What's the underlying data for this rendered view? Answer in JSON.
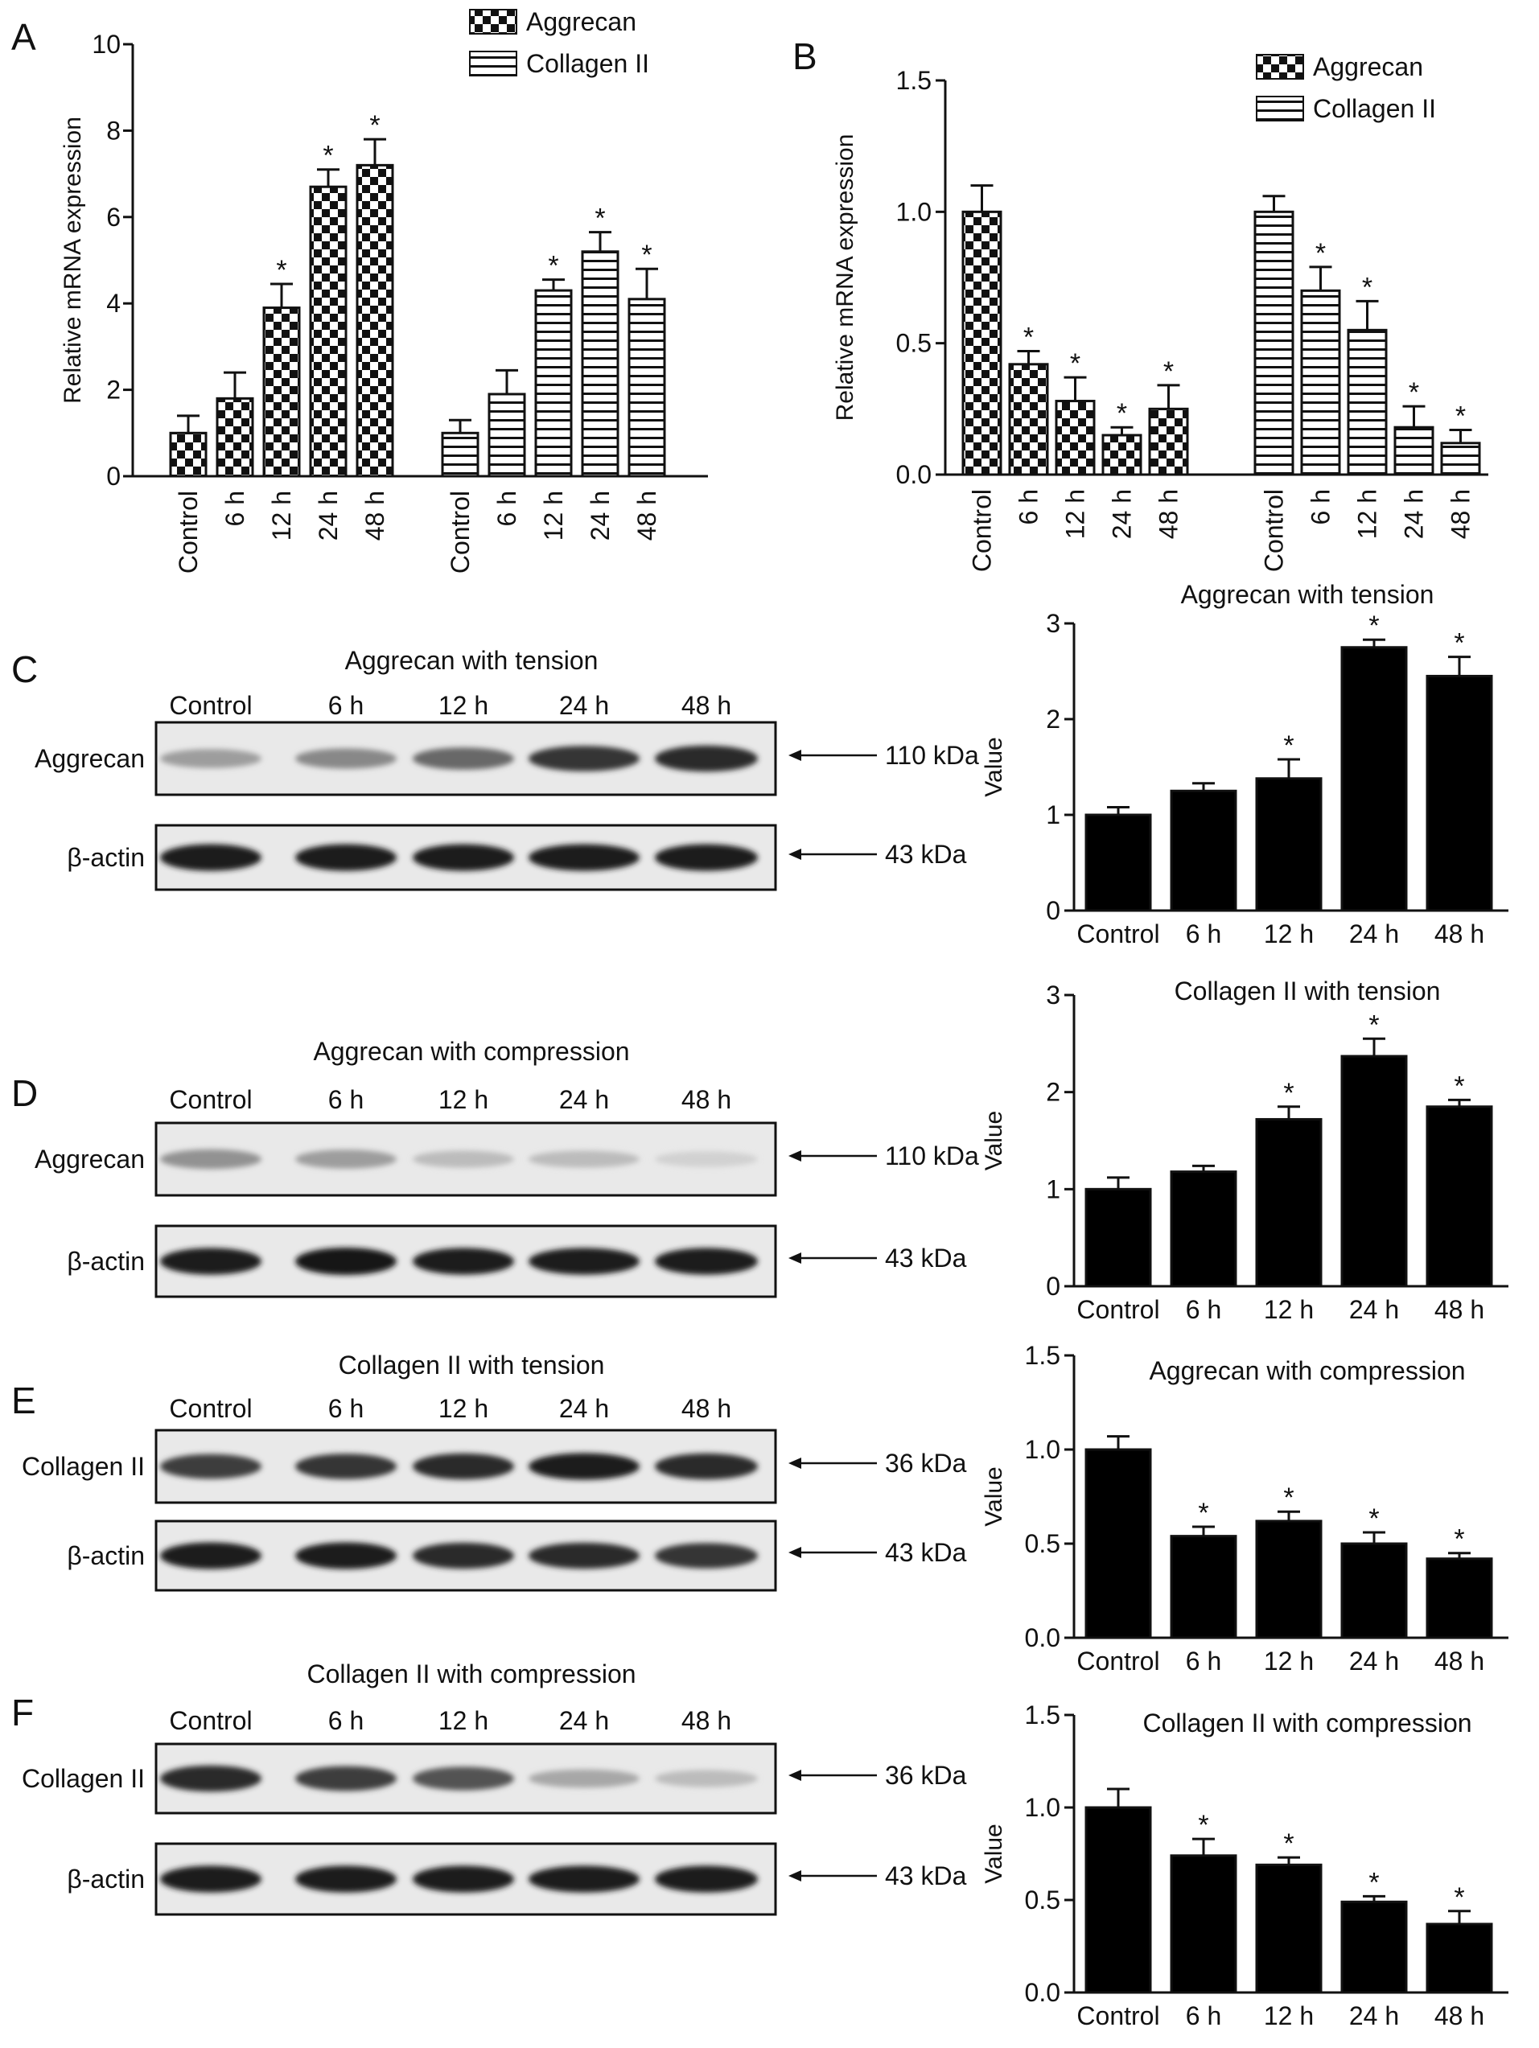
{
  "panel_letters": [
    "A",
    "B",
    "C",
    "D",
    "E",
    "F"
  ],
  "blots": [
    {
      "id": "C",
      "title": "Aggrecan with tension",
      "lanes": [
        "Control",
        "6 h",
        "12 h",
        "24 h",
        "48 h"
      ],
      "rows": [
        {
          "label": "Aggrecan",
          "kda": "110 kDa",
          "intensity": [
            0.35,
            0.45,
            0.6,
            0.85,
            0.9
          ]
        },
        {
          "label": "β-actin",
          "kda": "43 kDa",
          "intensity": [
            0.95,
            0.95,
            0.95,
            0.95,
            0.95
          ]
        }
      ]
    },
    {
      "id": "D",
      "title": "Aggrecan with compression",
      "lanes": [
        "Control",
        "6 h",
        "12 h",
        "24 h",
        "48 h"
      ],
      "rows": [
        {
          "label": "Aggrecan",
          "kda": "110 kDa",
          "intensity": [
            0.4,
            0.35,
            0.2,
            0.2,
            0.1
          ]
        },
        {
          "label": "β-actin",
          "kda": "43 kDa",
          "intensity": [
            0.95,
            1.0,
            0.95,
            0.95,
            0.95
          ]
        }
      ]
    },
    {
      "id": "E",
      "title": "Collagen II with tension",
      "lanes": [
        "Control",
        "6 h",
        "12 h",
        "24 h",
        "48 h"
      ],
      "rows": [
        {
          "label": "Collagen II",
          "kda": "36 kDa",
          "intensity": [
            0.8,
            0.85,
            0.9,
            0.95,
            0.9
          ]
        },
        {
          "label": "β-actin",
          "kda": "43 kDa",
          "intensity": [
            0.95,
            0.95,
            0.9,
            0.9,
            0.85
          ]
        }
      ]
    },
    {
      "id": "F",
      "title": "Collagen II with compression",
      "lanes": [
        "Control",
        "6 h",
        "12 h",
        "24 h",
        "48 h"
      ],
      "rows": [
        {
          "label": "Collagen II",
          "kda": "36 kDa",
          "intensity": [
            0.9,
            0.8,
            0.7,
            0.3,
            0.2
          ]
        },
        {
          "label": "β-actin",
          "kda": "43 kDa",
          "intensity": [
            0.95,
            0.95,
            0.95,
            0.95,
            0.95
          ]
        }
      ]
    }
  ],
  "chart_data": [
    {
      "id": "A",
      "type": "bar",
      "title": "",
      "ylabel": "Relative mRNA expression",
      "ylim": [
        0,
        10
      ],
      "yticks": [
        "0",
        "2",
        "4",
        "6",
        "8",
        "10"
      ],
      "categories": [
        "Control",
        "6 h",
        "12 h",
        "24 h",
        "48 h"
      ],
      "legend": [
        "Aggrecan",
        "Collagen II"
      ],
      "series": [
        {
          "name": "Aggrecan",
          "pattern": "checker",
          "values": [
            1.0,
            1.8,
            3.9,
            6.7,
            7.2
          ],
          "errors": [
            0.4,
            0.6,
            0.55,
            0.4,
            0.6
          ],
          "sig": [
            false,
            false,
            true,
            true,
            true
          ]
        },
        {
          "name": "Collagen II",
          "pattern": "hlines",
          "values": [
            1.0,
            1.9,
            4.3,
            5.2,
            4.1
          ],
          "errors": [
            0.3,
            0.55,
            0.25,
            0.45,
            0.7
          ],
          "sig": [
            false,
            false,
            true,
            true,
            true
          ]
        }
      ]
    },
    {
      "id": "B",
      "type": "bar",
      "title": "",
      "ylabel": "Relative mRNA expression",
      "ylim": [
        0,
        1.5
      ],
      "yticks": [
        "0.0",
        "0.5",
        "1.0",
        "1.5"
      ],
      "categories": [
        "Control",
        "6 h",
        "12 h",
        "24 h",
        "48 h"
      ],
      "legend": [
        "Aggrecan",
        "Collagen II"
      ],
      "series": [
        {
          "name": "Aggrecan",
          "pattern": "checker",
          "values": [
            1.0,
            0.42,
            0.28,
            0.15,
            0.25
          ],
          "errors": [
            0.1,
            0.05,
            0.09,
            0.03,
            0.09
          ],
          "sig": [
            false,
            true,
            true,
            true,
            true
          ]
        },
        {
          "name": "Collagen II",
          "pattern": "hlines",
          "values": [
            1.0,
            0.7,
            0.55,
            0.18,
            0.12
          ],
          "errors": [
            0.06,
            0.09,
            0.11,
            0.08,
            0.05
          ],
          "sig": [
            false,
            true,
            true,
            true,
            true
          ]
        }
      ]
    },
    {
      "id": "C-quant",
      "type": "bar",
      "title": "Aggrecan with tension",
      "ylabel": "Value",
      "ylim": [
        0,
        3
      ],
      "yticks": [
        "0",
        "1",
        "2",
        "3"
      ],
      "categories": [
        "Control",
        "6 h",
        "12 h",
        "24 h",
        "48 h"
      ],
      "values": [
        1.0,
        1.25,
        1.38,
        2.75,
        2.45
      ],
      "errors": [
        0.08,
        0.08,
        0.2,
        0.08,
        0.2
      ],
      "sig": [
        false,
        false,
        true,
        true,
        true
      ]
    },
    {
      "id": "D-quant",
      "type": "bar",
      "title": "Collagen II with tension",
      "ylabel": "Value",
      "ylim": [
        0,
        3
      ],
      "yticks": [
        "0",
        "1",
        "2",
        "3"
      ],
      "categories": [
        "Control",
        "6 h",
        "12 h",
        "24 h",
        "48 h"
      ],
      "values": [
        1.0,
        1.18,
        1.72,
        2.37,
        1.85
      ],
      "errors": [
        0.12,
        0.06,
        0.13,
        0.18,
        0.07
      ],
      "sig": [
        false,
        false,
        true,
        true,
        true
      ]
    },
    {
      "id": "E-quant",
      "type": "bar",
      "title": "Aggrecan with compression",
      "ylabel": "Value",
      "ylim": [
        0,
        1.5
      ],
      "yticks": [
        "0.0",
        "0.5",
        "1.0",
        "1.5"
      ],
      "categories": [
        "Control",
        "6 h",
        "12 h",
        "24 h",
        "48 h"
      ],
      "values": [
        1.0,
        0.54,
        0.62,
        0.5,
        0.42
      ],
      "errors": [
        0.07,
        0.05,
        0.05,
        0.06,
        0.03
      ],
      "sig": [
        false,
        true,
        true,
        true,
        true
      ]
    },
    {
      "id": "F-quant",
      "type": "bar",
      "title": "Collagen II with compression",
      "ylabel": "Value",
      "ylim": [
        0,
        1.5
      ],
      "yticks": [
        "0.0",
        "0.5",
        "1.0",
        "1.5"
      ],
      "categories": [
        "Control",
        "6 h",
        "12 h",
        "24 h",
        "48 h"
      ],
      "values": [
        1.0,
        0.74,
        0.69,
        0.49,
        0.37
      ],
      "errors": [
        0.1,
        0.09,
        0.04,
        0.03,
        0.07
      ],
      "sig": [
        false,
        true,
        true,
        true,
        true
      ]
    }
  ]
}
